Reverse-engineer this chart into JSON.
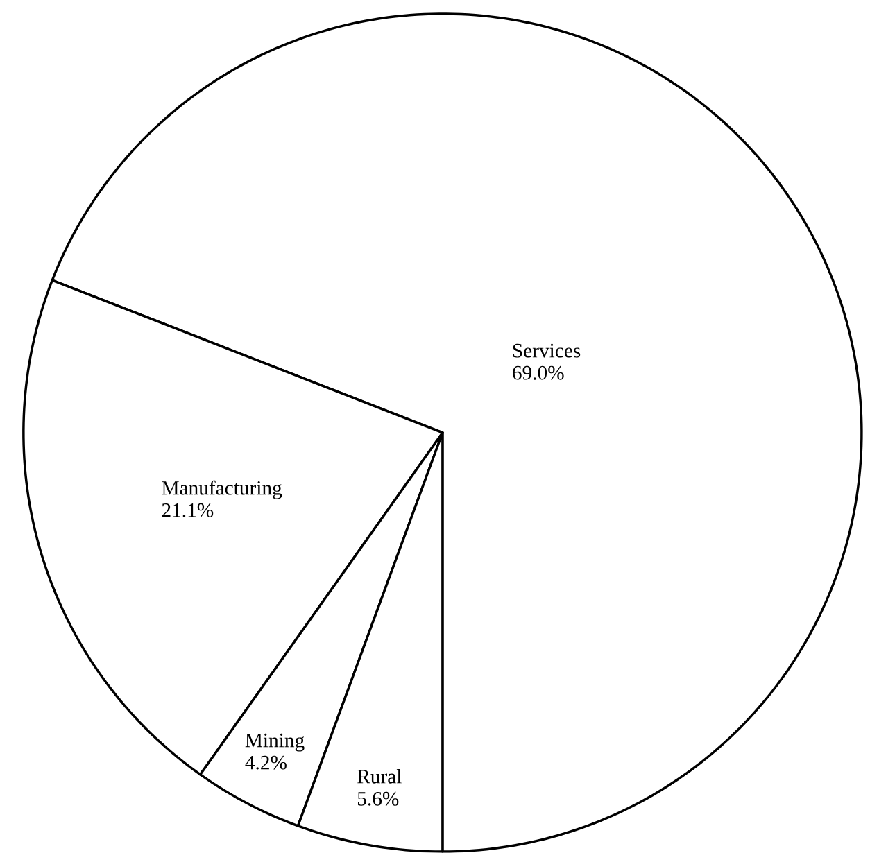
{
  "chart_data": {
    "type": "pie",
    "categories": [
      "Services",
      "Manufacturing",
      "Mining",
      "Rural"
    ],
    "values": [
      69.0,
      21.1,
      4.2,
      5.6
    ],
    "value_labels": [
      "69.0%",
      "21.1%",
      "4.2%",
      "5.6%"
    ],
    "colors": [
      "#ffffff",
      "#ffffff",
      "#ffffff",
      "#ffffff"
    ]
  }
}
